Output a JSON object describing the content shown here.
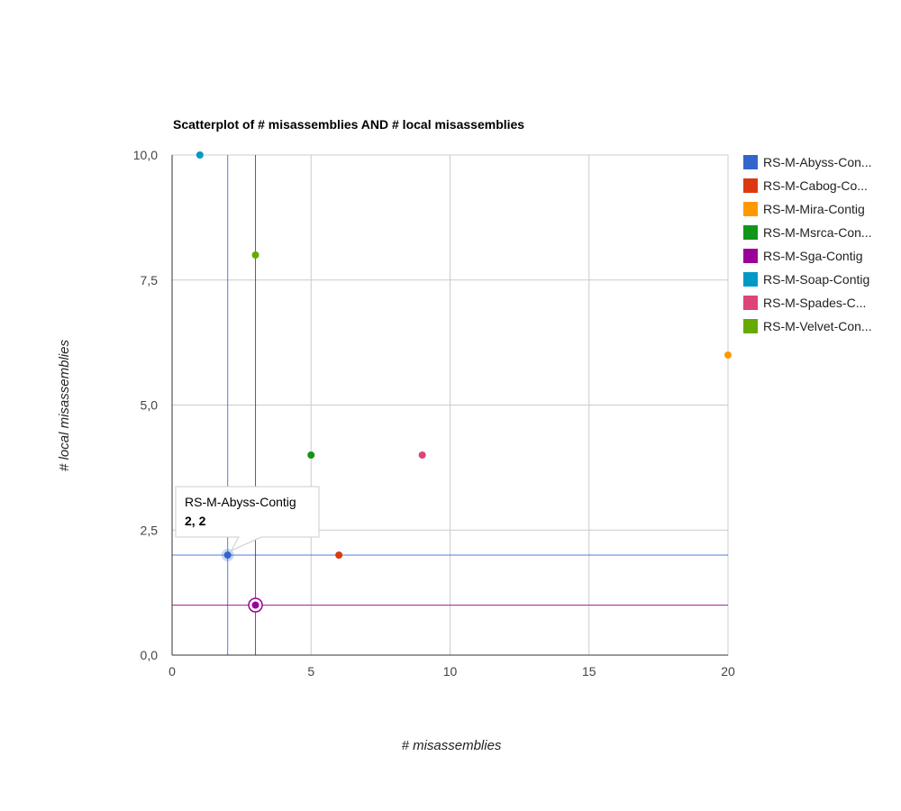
{
  "chart_data": {
    "type": "scatter",
    "title": "Scatterplot of # misassemblies AND # local misassemblies",
    "xlabel": "# misassemblies",
    "ylabel": "# local misassemblies",
    "xlim": [
      0,
      20
    ],
    "ylim": [
      0,
      10
    ],
    "x_ticks": [
      "0",
      "5",
      "10",
      "15",
      "20"
    ],
    "y_ticks": [
      "0,0",
      "2,5",
      "5,0",
      "7,5",
      "10,0"
    ],
    "x_tick_values": [
      0,
      5,
      10,
      15,
      20
    ],
    "y_tick_values": [
      0,
      2.5,
      5,
      7.5,
      10
    ],
    "grid": true,
    "legend_position": "right",
    "series": [
      {
        "name": "RS-M-Abyss-Con...",
        "full_name": "RS-M-Abyss-Contig",
        "color": "#3366cc",
        "points": [
          [
            2,
            2
          ]
        ]
      },
      {
        "name": "RS-M-Cabog-Co...",
        "color": "#dc3912",
        "points": [
          [
            6,
            2
          ]
        ]
      },
      {
        "name": "RS-M-Mira-Contig",
        "color": "#ff9900",
        "points": [
          [
            20,
            6
          ]
        ]
      },
      {
        "name": "RS-M-Msrca-Con...",
        "color": "#109618",
        "points": [
          [
            5,
            4
          ]
        ]
      },
      {
        "name": "RS-M-Sga-Contig",
        "color": "#990099",
        "points": [
          [
            3,
            1
          ]
        ]
      },
      {
        "name": "RS-M-Soap-Contig",
        "color": "#0099c6",
        "points": [
          [
            1,
            10
          ]
        ]
      },
      {
        "name": "RS-M-Spades-C...",
        "color": "#dd4477",
        "points": [
          [
            9,
            4
          ]
        ]
      },
      {
        "name": "RS-M-Velvet-Con...",
        "color": "#66aa00",
        "points": [
          [
            3,
            8
          ]
        ]
      }
    ],
    "crosshairs": [
      {
        "x": 2,
        "y": 2,
        "color": "#3366cc"
      },
      {
        "x": 3,
        "y": 1,
        "color": "#990099"
      }
    ],
    "highlighted_point": {
      "series": 4,
      "x": 3,
      "y": 1
    },
    "tooltip": {
      "title": "RS-M-Abyss-Contig",
      "value": "2, 2",
      "series": 0
    }
  }
}
